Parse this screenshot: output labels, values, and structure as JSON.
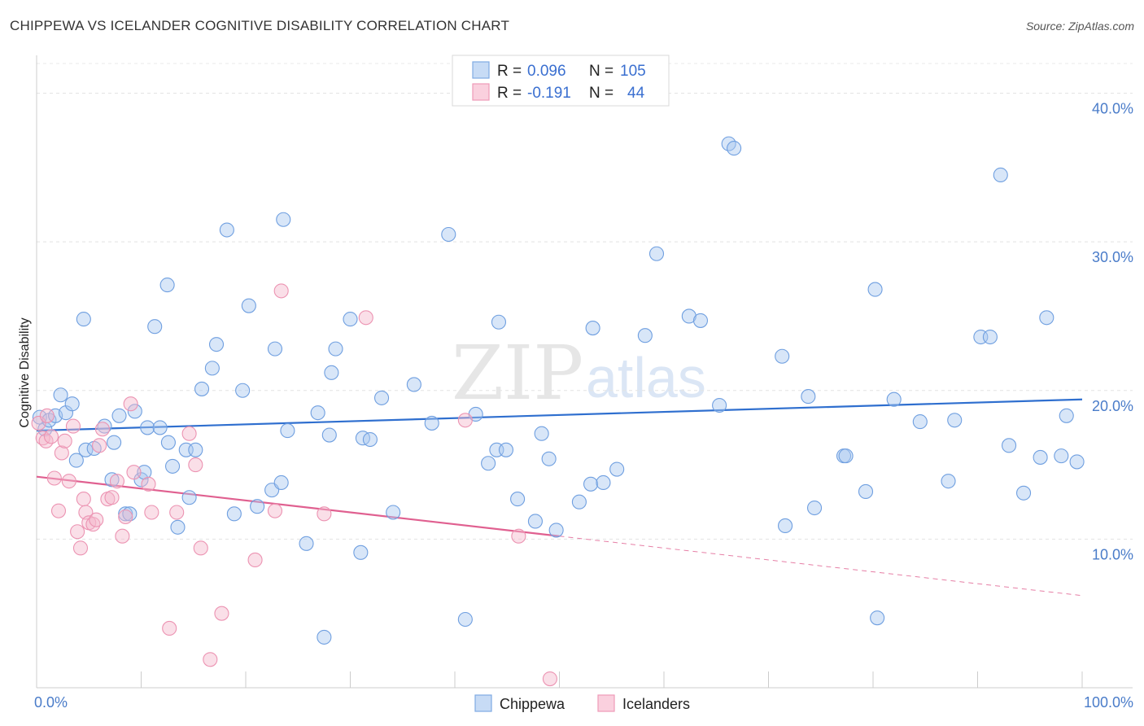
{
  "header": {
    "title": "CHIPPEWA VS ICELANDER COGNITIVE DISABILITY CORRELATION CHART",
    "source": "Source: ZipAtlas.com"
  },
  "watermark": {
    "zip": "ZIP",
    "atlas": "atlas"
  },
  "legend": {
    "r_label": "R =",
    "n_label": "N =",
    "rows": [
      {
        "r": "0.096",
        "n": "105",
        "color": "#a9c8f0"
      },
      {
        "r": "-0.191",
        "n": "44",
        "color": "#f5b8cb"
      }
    ]
  },
  "bottom_legend": [
    "Chippewa",
    "Icelanders"
  ],
  "chart_data": {
    "type": "scatter",
    "title": "CHIPPEWA VS ICELANDER COGNITIVE DISABILITY CORRELATION CHART",
    "xlabel": "",
    "ylabel": "Cognitive Disability",
    "xlim": [
      0,
      100
    ],
    "ylim": [
      0,
      42
    ],
    "x_tick_labels": [
      "0.0%",
      "100.0%"
    ],
    "y_ticks": [
      10,
      20,
      30,
      40
    ],
    "y_tick_labels": [
      "10.0%",
      "20.0%",
      "30.0%",
      "40.0%"
    ],
    "grid": true,
    "legend_position": "top-center",
    "colors": {
      "chippewa_fill": "#a9c8f0",
      "chippewa_line": "#2f6fcf",
      "icelanders_fill": "#f5b8cb",
      "icelanders_line": "#e06090"
    },
    "series": [
      {
        "name": "Chippewa",
        "r": 0.096,
        "n": 105,
        "trend": {
          "x": [
            0,
            100
          ],
          "y": [
            17.3,
            19.4
          ],
          "dashed_from": null
        },
        "points": [
          [
            0.3,
            18.2
          ],
          [
            0.8,
            17.4
          ],
          [
            1.2,
            18.0
          ],
          [
            1.8,
            18.3
          ],
          [
            2.3,
            19.7
          ],
          [
            2.8,
            18.5
          ],
          [
            3.4,
            19.1
          ],
          [
            3.8,
            15.3
          ],
          [
            4.5,
            24.8
          ],
          [
            4.7,
            16.0
          ],
          [
            5.5,
            16.1
          ],
          [
            6.5,
            17.6
          ],
          [
            7.2,
            14.0
          ],
          [
            7.4,
            16.5
          ],
          [
            7.9,
            18.3
          ],
          [
            8.5,
            11.7
          ],
          [
            8.9,
            11.7
          ],
          [
            9.4,
            18.6
          ],
          [
            10.0,
            14.0
          ],
          [
            10.3,
            14.5
          ],
          [
            10.6,
            17.5
          ],
          [
            11.3,
            24.3
          ],
          [
            11.8,
            17.5
          ],
          [
            12.5,
            27.1
          ],
          [
            12.6,
            16.5
          ],
          [
            13.0,
            14.9
          ],
          [
            13.5,
            10.8
          ],
          [
            14.3,
            16.0
          ],
          [
            14.6,
            12.8
          ],
          [
            15.2,
            16.0
          ],
          [
            15.8,
            20.1
          ],
          [
            16.8,
            21.5
          ],
          [
            17.2,
            23.1
          ],
          [
            18.2,
            30.8
          ],
          [
            18.9,
            11.7
          ],
          [
            19.7,
            20.0
          ],
          [
            20.3,
            25.7
          ],
          [
            21.1,
            12.2
          ],
          [
            22.5,
            13.3
          ],
          [
            22.8,
            22.8
          ],
          [
            23.4,
            13.8
          ],
          [
            23.6,
            31.5
          ],
          [
            24.0,
            17.3
          ],
          [
            25.8,
            9.7
          ],
          [
            26.9,
            18.5
          ],
          [
            27.5,
            3.4
          ],
          [
            28.0,
            17.0
          ],
          [
            28.2,
            21.2
          ],
          [
            28.6,
            22.8
          ],
          [
            30.0,
            24.8
          ],
          [
            31.0,
            9.1
          ],
          [
            31.2,
            16.8
          ],
          [
            31.9,
            16.7
          ],
          [
            33.0,
            19.5
          ],
          [
            34.1,
            11.8
          ],
          [
            36.1,
            20.4
          ],
          [
            37.8,
            17.8
          ],
          [
            39.4,
            30.5
          ],
          [
            41.0,
            4.6
          ],
          [
            42.0,
            18.4
          ],
          [
            43.2,
            15.1
          ],
          [
            44.0,
            16.0
          ],
          [
            44.2,
            24.6
          ],
          [
            44.9,
            16.0
          ],
          [
            46.0,
            12.7
          ],
          [
            47.7,
            11.2
          ],
          [
            48.3,
            17.1
          ],
          [
            49.0,
            15.4
          ],
          [
            49.7,
            10.6
          ],
          [
            51.9,
            12.5
          ],
          [
            53.0,
            13.7
          ],
          [
            53.2,
            24.2
          ],
          [
            54.2,
            13.8
          ],
          [
            55.5,
            14.7
          ],
          [
            58.2,
            23.7
          ],
          [
            59.3,
            29.2
          ],
          [
            62.4,
            25.0
          ],
          [
            63.5,
            24.7
          ],
          [
            65.3,
            19.0
          ],
          [
            66.2,
            36.6
          ],
          [
            66.7,
            36.3
          ],
          [
            71.3,
            22.3
          ],
          [
            71.6,
            10.9
          ],
          [
            73.8,
            19.6
          ],
          [
            74.4,
            12.1
          ],
          [
            77.2,
            15.6
          ],
          [
            77.4,
            15.6
          ],
          [
            79.3,
            13.2
          ],
          [
            80.2,
            26.8
          ],
          [
            80.4,
            4.7
          ],
          [
            82.0,
            19.4
          ],
          [
            84.5,
            17.9
          ],
          [
            87.2,
            13.9
          ],
          [
            87.8,
            18.0
          ],
          [
            90.3,
            23.6
          ],
          [
            91.2,
            23.6
          ],
          [
            92.2,
            34.5
          ],
          [
            93.0,
            16.3
          ],
          [
            94.4,
            13.1
          ],
          [
            96.0,
            15.5
          ],
          [
            96.6,
            24.9
          ],
          [
            98.0,
            15.6
          ],
          [
            99.5,
            15.2
          ],
          [
            98.5,
            18.3
          ]
        ]
      },
      {
        "name": "Icelanders",
        "r": -0.191,
        "n": 44,
        "trend": {
          "x": [
            0,
            50,
            100
          ],
          "y": [
            14.2,
            10.2,
            6.2
          ],
          "dashed_from": 50
        },
        "points": [
          [
            0.2,
            17.8
          ],
          [
            0.6,
            16.8
          ],
          [
            0.9,
            16.6
          ],
          [
            1.4,
            16.9
          ],
          [
            1.7,
            14.1
          ],
          [
            2.1,
            11.9
          ],
          [
            2.4,
            15.8
          ],
          [
            2.7,
            16.6
          ],
          [
            3.1,
            13.9
          ],
          [
            3.5,
            17.6
          ],
          [
            3.9,
            10.5
          ],
          [
            4.2,
            9.4
          ],
          [
            4.5,
            12.7
          ],
          [
            4.7,
            11.8
          ],
          [
            5.0,
            11.1
          ],
          [
            5.4,
            11.0
          ],
          [
            5.7,
            11.3
          ],
          [
            6.0,
            16.3
          ],
          [
            6.3,
            17.4
          ],
          [
            6.8,
            12.7
          ],
          [
            7.2,
            12.8
          ],
          [
            7.7,
            13.9
          ],
          [
            8.2,
            10.2
          ],
          [
            8.5,
            11.5
          ],
          [
            9.0,
            19.1
          ],
          [
            9.3,
            14.5
          ],
          [
            10.7,
            13.7
          ],
          [
            11.0,
            11.8
          ],
          [
            12.7,
            4.0
          ],
          [
            13.4,
            11.8
          ],
          [
            14.6,
            17.1
          ],
          [
            15.2,
            15.0
          ],
          [
            15.7,
            9.4
          ],
          [
            16.6,
            1.9
          ],
          [
            17.7,
            5.0
          ],
          [
            20.9,
            8.6
          ],
          [
            22.8,
            11.9
          ],
          [
            23.4,
            26.7
          ],
          [
            27.5,
            11.7
          ],
          [
            31.5,
            24.9
          ],
          [
            41.0,
            18.0
          ],
          [
            46.1,
            10.2
          ],
          [
            49.1,
            0.6
          ],
          [
            1.0,
            18.3
          ]
        ]
      }
    ]
  }
}
